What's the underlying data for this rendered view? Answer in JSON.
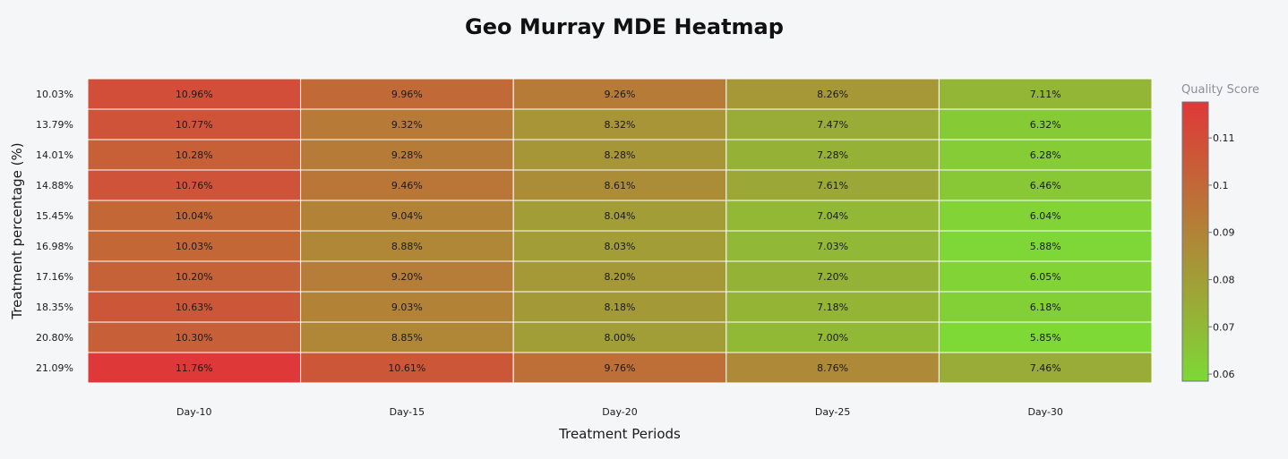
{
  "chart_data": {
    "type": "heatmap",
    "title": "Geo Murray MDE Heatmap",
    "xlabel": "Treatment Periods",
    "ylabel": "Treatment percentage (%)",
    "x_categories": [
      "Day-10",
      "Day-15",
      "Day-20",
      "Day-25",
      "Day-30"
    ],
    "y_categories": [
      "10.03%",
      "13.79%",
      "14.01%",
      "14.88%",
      "15.45%",
      "16.98%",
      "17.16%",
      "18.35%",
      "20.80%",
      "21.09%"
    ],
    "values": [
      [
        0.1096,
        0.0996,
        0.0926,
        0.0826,
        0.0711
      ],
      [
        0.1077,
        0.0932,
        0.0832,
        0.0747,
        0.0632
      ],
      [
        0.1028,
        0.0928,
        0.0828,
        0.0728,
        0.0628
      ],
      [
        0.1076,
        0.0946,
        0.0861,
        0.0761,
        0.0646
      ],
      [
        0.1004,
        0.0904,
        0.0804,
        0.0704,
        0.0604
      ],
      [
        0.1003,
        0.0888,
        0.0803,
        0.0703,
        0.0588
      ],
      [
        0.102,
        0.092,
        0.082,
        0.072,
        0.0605
      ],
      [
        0.1063,
        0.0903,
        0.0818,
        0.0718,
        0.0618
      ],
      [
        0.103,
        0.0885,
        0.08,
        0.07,
        0.0585
      ],
      [
        0.1176,
        0.1061,
        0.0976,
        0.0876,
        0.0746
      ]
    ],
    "cell_labels": [
      [
        "10.96%",
        "9.96%",
        "9.26%",
        "8.26%",
        "7.11%"
      ],
      [
        "10.77%",
        "9.32%",
        "8.32%",
        "7.47%",
        "6.32%"
      ],
      [
        "10.28%",
        "9.28%",
        "8.28%",
        "7.28%",
        "6.28%"
      ],
      [
        "10.76%",
        "9.46%",
        "8.61%",
        "7.61%",
        "6.46%"
      ],
      [
        "10.04%",
        "9.04%",
        "8.04%",
        "7.04%",
        "6.04%"
      ],
      [
        "10.03%",
        "8.88%",
        "8.03%",
        "7.03%",
        "5.88%"
      ],
      [
        "10.20%",
        "9.20%",
        "8.20%",
        "7.20%",
        "6.05%"
      ],
      [
        "10.63%",
        "9.03%",
        "8.18%",
        "7.18%",
        "6.18%"
      ],
      [
        "10.30%",
        "8.85%",
        "8.00%",
        "7.00%",
        "5.85%"
      ],
      [
        "11.76%",
        "10.61%",
        "9.76%",
        "8.76%",
        "7.46%"
      ]
    ],
    "colorscale": {
      "title": "Quality Score",
      "min": 0.0585,
      "max": 0.1176,
      "low_color": "#7ed836",
      "high_color": "#df3838",
      "ticks": [
        0.06,
        0.07,
        0.08,
        0.09,
        0.1,
        0.11
      ],
      "tick_labels": [
        "0.06",
        "0.07",
        "0.08",
        "0.09",
        "0.1",
        "0.11"
      ]
    },
    "grid": false,
    "legend": "colorbar-right"
  }
}
